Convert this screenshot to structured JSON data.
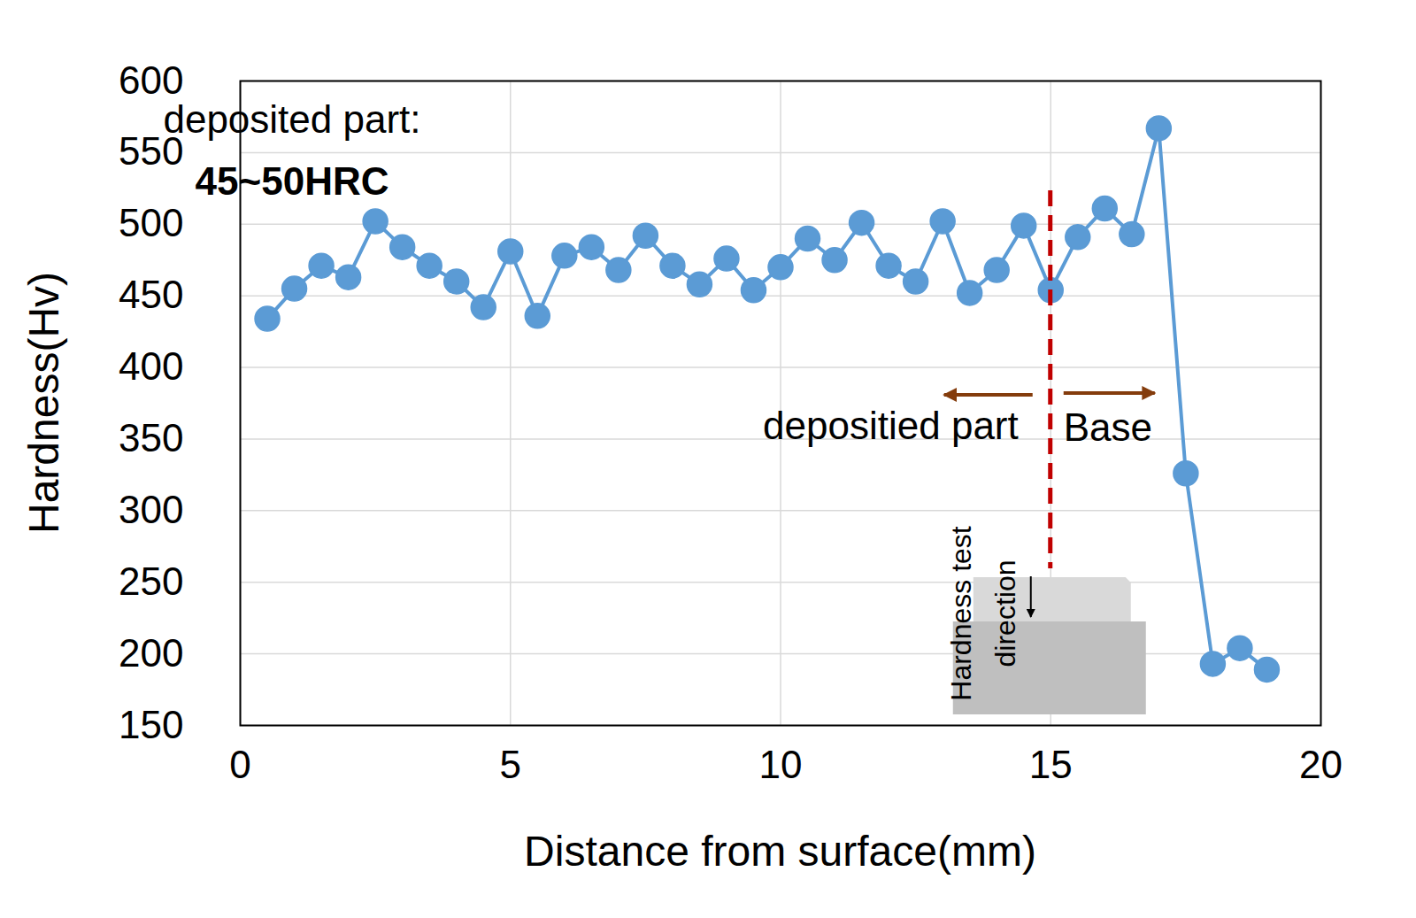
{
  "chart_data": {
    "type": "line",
    "xlabel": "Distance from surface(mm)",
    "ylabel": "Hardness(Hv)",
    "x": [
      0.5,
      1,
      1.5,
      2,
      2.5,
      3,
      3.5,
      4,
      4.5,
      5,
      5.5,
      6,
      6.5,
      7,
      7.5,
      8,
      8.5,
      9,
      9.5,
      10,
      10.5,
      11,
      11.5,
      12,
      12.5,
      13,
      13.5,
      14,
      14.5,
      15,
      15.5,
      16,
      16.5,
      17,
      17.5,
      18,
      18.5,
      19
    ],
    "values": [
      434,
      455,
      471,
      463,
      502,
      484,
      471,
      460,
      442,
      481,
      436,
      478,
      484,
      468,
      492,
      471,
      458,
      476,
      454,
      470,
      490,
      475,
      501,
      471,
      460,
      502,
      452,
      468,
      499,
      454,
      491,
      511,
      493,
      567,
      326,
      193,
      204,
      189
    ],
    "color": "#5b9bd5",
    "marker": "circle",
    "xlim": [
      0,
      20
    ],
    "ylim": [
      150,
      600
    ],
    "xticks": [
      0,
      5,
      10,
      15,
      20
    ],
    "yticks": [
      150,
      200,
      250,
      300,
      350,
      400,
      450,
      500,
      550,
      600
    ],
    "grid": true,
    "annotations": {
      "note_title": "deposited part:",
      "note_value": "45~50HRC",
      "left_region": "depositied part",
      "right_region": "Base",
      "inset_label_lines": [
        "Hardness test",
        "direction"
      ],
      "boundary_x": 15
    }
  }
}
